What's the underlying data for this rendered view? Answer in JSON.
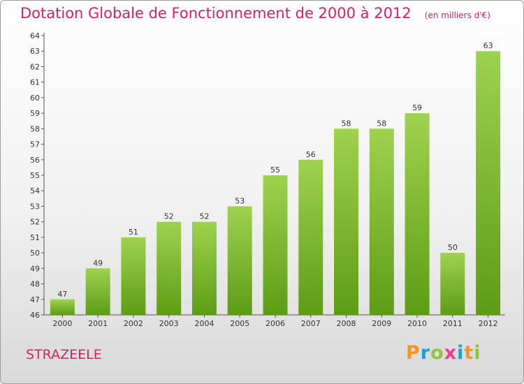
{
  "header": {
    "title": "Dotation Globale de Fonctionnement de 2000 à 2012",
    "unit": "(en milliers d'€)"
  },
  "footer": {
    "commune": "STRAZEELE",
    "brand_letters": [
      "P",
      "r",
      "o",
      "x",
      "i",
      "t",
      "i"
    ],
    "brand_colors": [
      "#f7941d",
      "#1a9fd8",
      "#8dc63f",
      "#ee3d8f",
      "#1a9fd8",
      "#f7941d",
      "#8dc63f"
    ]
  },
  "chart_data": {
    "type": "bar",
    "categories": [
      "2000",
      "2001",
      "2002",
      "2003",
      "2004",
      "2005",
      "2006",
      "2007",
      "2008",
      "2009",
      "2010",
      "2011",
      "2012"
    ],
    "values": [
      47,
      49,
      51,
      52,
      52,
      53,
      55,
      56,
      58,
      58,
      59,
      50,
      63
    ],
    "ylim": [
      46,
      64
    ],
    "yticks": [
      46,
      47,
      48,
      49,
      50,
      51,
      52,
      53,
      54,
      55,
      56,
      57,
      58,
      59,
      60,
      61,
      62,
      63,
      64
    ],
    "grid": false,
    "bar_color": "#7dbb2f",
    "title": "Dotation Globale de Fonctionnement de 2000 à 2012",
    "xlabel": "",
    "ylabel": ""
  }
}
